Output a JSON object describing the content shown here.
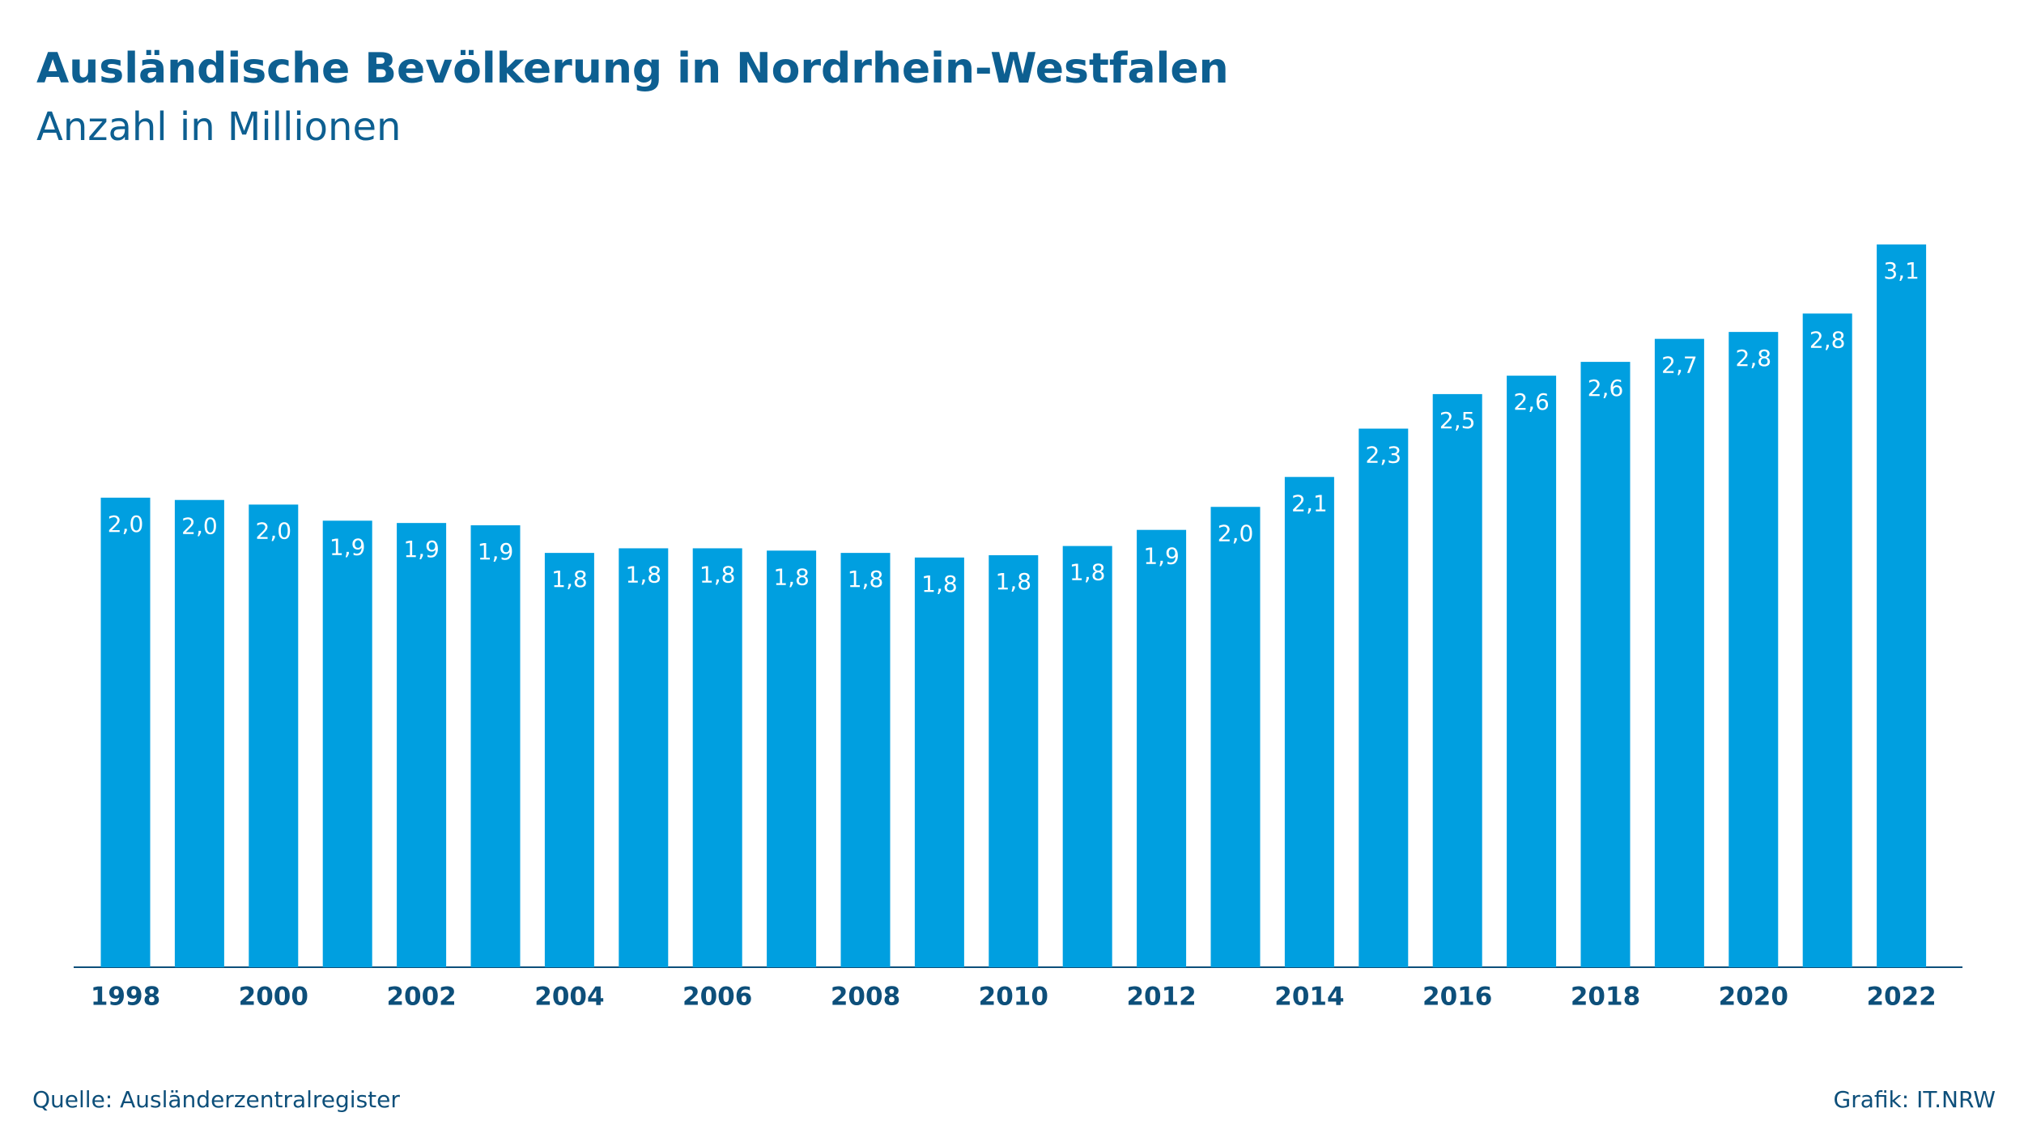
{
  "chart_data": {
    "type": "bar",
    "title": "Ausländische Bevölkerung in Nordrhein-Westfalen",
    "subtitle": "Anzahl in Millionen",
    "source": "Quelle: Ausländerzentralregister",
    "credit": "Grafik: IT.NRW",
    "categories": [
      "1998",
      null,
      "2000",
      null,
      "2002",
      null,
      "2004",
      null,
      "2006",
      null,
      "2008",
      null,
      "2010",
      null,
      "2012",
      null,
      "2014",
      null,
      "2016",
      null,
      "2018",
      null,
      "2020",
      null,
      "2022"
    ],
    "values": [
      2.04,
      2.03,
      2.01,
      1.94,
      1.93,
      1.92,
      1.8,
      1.82,
      1.82,
      1.81,
      1.8,
      1.78,
      1.79,
      1.83,
      1.9,
      2.0,
      2.13,
      2.34,
      2.49,
      2.57,
      2.63,
      2.73,
      2.76,
      2.84,
      3.14
    ],
    "value_labels": [
      "2,0",
      "2,0",
      "2,0",
      "1,9",
      "1,9",
      "1,9",
      "1,8",
      "1,8",
      "1,8",
      "1,8",
      "1,8",
      "1,8",
      "1,8",
      "1,8",
      "1,9",
      "2,0",
      "2,1",
      "2,3",
      "2,5",
      "2,6",
      "2,6",
      "2,7",
      "2,8",
      "2,8",
      "3,1"
    ],
    "color": "#009fe0",
    "ylim": [
      0,
      3.2
    ]
  }
}
